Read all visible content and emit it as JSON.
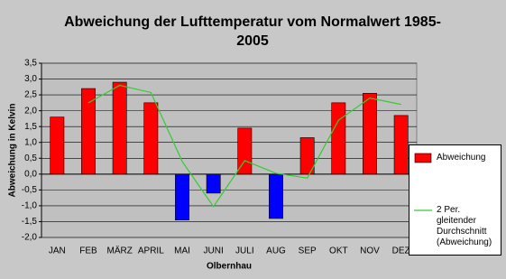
{
  "chart_data": {
    "type": "bar",
    "title": "Abweichung der Lufttemperatur vom Normalwert 1985-2005",
    "x_label": "Olbernhau",
    "y_label": "Abweichung in Kelvin",
    "categories": [
      "JAN",
      "FEB",
      "MÄRZ",
      "APRIL",
      "MAI",
      "JUNI",
      "JULI",
      "AUG",
      "SEP",
      "OKT",
      "NOV",
      "DEZ"
    ],
    "series": [
      {
        "name": "Abweichung",
        "type": "bar",
        "color": "#ff0000",
        "negative_color": "#0000ff",
        "values": [
          1.8,
          2.7,
          2.9,
          2.25,
          -1.45,
          -0.6,
          1.45,
          -1.4,
          1.15,
          2.25,
          2.55,
          1.85
        ]
      },
      {
        "name": "2 Per. gleitender Durchschnitt (Abweichung)",
        "type": "line",
        "color": "#33cc33",
        "values": [
          null,
          2.25,
          2.8,
          2.575,
          0.4,
          -1.025,
          0.425,
          0.025,
          -0.125,
          1.7,
          2.4,
          2.2
        ]
      }
    ],
    "ylim": [
      -2,
      3.5
    ],
    "yticks": [
      {
        "value": -2,
        "label": "-2,0"
      },
      {
        "value": -1.5,
        "label": "-1,5"
      },
      {
        "value": -1,
        "label": "-1,0"
      },
      {
        "value": -0.5,
        "label": "-0,5"
      },
      {
        "value": 0,
        "label": "0,0"
      },
      {
        "value": 0.5,
        "label": "0,5"
      },
      {
        "value": 1,
        "label": "1,0"
      },
      {
        "value": 1.5,
        "label": "1,5"
      },
      {
        "value": 2,
        "label": "2,0"
      },
      {
        "value": 2.5,
        "label": "2,5"
      },
      {
        "value": 3,
        "label": "3,0"
      },
      {
        "value": 3.5,
        "label": "3,5"
      }
    ],
    "grid": true
  }
}
